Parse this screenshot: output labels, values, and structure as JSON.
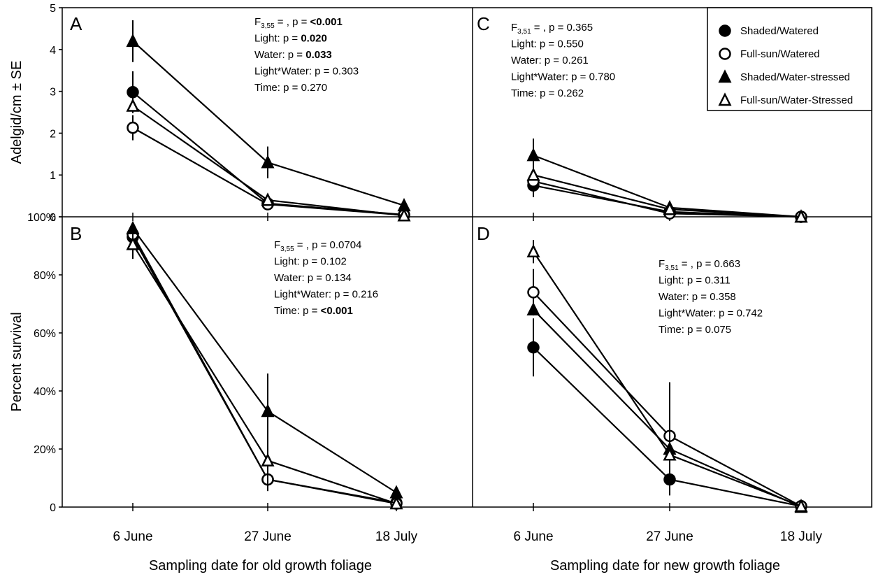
{
  "chart_data": [
    {
      "type": "line",
      "panel_label": "A",
      "x": [
        "6 June",
        "27 June",
        "18 July"
      ],
      "ylabel": "Adelgid/cm ± SE",
      "ylim": [
        0,
        5
      ],
      "yticks": [
        "0",
        "1",
        "2",
        "3",
        "4",
        "5"
      ],
      "series": [
        {
          "name": "Shaded/Watered",
          "values": [
            2.98,
            0.32,
            0.05
          ],
          "err": [
            0.5,
            0,
            0
          ]
        },
        {
          "name": "Full-sun/Watered",
          "values": [
            2.13,
            0.3,
            0.04
          ],
          "err": [
            0.3,
            0,
            0
          ]
        },
        {
          "name": "Shaded/Water-stressed",
          "values": [
            4.2,
            1.3,
            0.27
          ],
          "err": [
            0.5,
            0.38,
            0
          ]
        },
        {
          "name": "Full-sun/Water-Stressed",
          "values": [
            2.65,
            0.4,
            0.03
          ],
          "err": [
            0,
            0,
            0
          ]
        }
      ],
      "stats": [
        {
          "label": "F3,55 = , p = ",
          "value": "<0.001",
          "bold": true
        },
        {
          "label": "Light: p = ",
          "value": "0.020",
          "bold": true
        },
        {
          "label": "Water: p = ",
          "value": "0.033",
          "bold": true
        },
        {
          "label": "Light*Water: p = ",
          "value": "0.303",
          "bold": false
        },
        {
          "label": "Time: p = ",
          "value": "0.270",
          "bold": false
        }
      ]
    },
    {
      "type": "line",
      "panel_label": "C",
      "x": [
        "6 June",
        "27 June",
        "18 July"
      ],
      "ylim": [
        0,
        5
      ],
      "series": [
        {
          "name": "Shaded/Watered",
          "values": [
            0.75,
            0.12,
            0.0
          ],
          "err": [
            0.28,
            0,
            0
          ]
        },
        {
          "name": "Full-sun/Watered",
          "values": [
            0.85,
            0.08,
            0.0
          ],
          "err": [
            0,
            0,
            0
          ]
        },
        {
          "name": "Shaded/Water-stressed",
          "values": [
            1.47,
            0.22,
            0.0
          ],
          "err": [
            0.4,
            0,
            0
          ]
        },
        {
          "name": "Full-sun/Water-Stressed",
          "values": [
            1.0,
            0.18,
            0.0
          ],
          "err": [
            0,
            0,
            0
          ]
        }
      ],
      "stats": [
        {
          "label": "F3,51 = , p = ",
          "value": "0.365",
          "bold": false
        },
        {
          "label": "Light: p = ",
          "value": "0.550",
          "bold": false
        },
        {
          "label": "Water: p = ",
          "value": "0.261",
          "bold": false
        },
        {
          "label": "Light*Water: p = ",
          "value": "0.780",
          "bold": false
        },
        {
          "label": "Time: p = ",
          "value": "0.262",
          "bold": false
        }
      ]
    },
    {
      "type": "line",
      "panel_label": "B",
      "x": [
        "6 June",
        "27 June",
        "18 July"
      ],
      "xlabel": "Sampling date for old growth foliage",
      "ylabel": "Percent survival",
      "ylim": [
        0,
        100
      ],
      "yticks": [
        "0",
        "20%",
        "40%",
        "60%",
        "80%",
        "100%"
      ],
      "series": [
        {
          "name": "Shaded/Watered",
          "values": [
            93,
            9.5,
            1.5
          ],
          "err": [
            0,
            0,
            0
          ]
        },
        {
          "name": "Full-sun/Watered",
          "values": [
            94,
            9.5,
            1.2
          ],
          "err": [
            0,
            0,
            0
          ]
        },
        {
          "name": "Shaded/Water-stressed",
          "values": [
            96,
            33,
            5
          ],
          "err": [
            0,
            13,
            0
          ]
        },
        {
          "name": "Full-sun/Water-Stressed",
          "values": [
            90.5,
            16,
            1.2
          ],
          "err": [
            5,
            10.5,
            0
          ]
        }
      ],
      "stats": [
        {
          "label": "F3,55 = , p = ",
          "value": "0.0704",
          "bold": false
        },
        {
          "label": "Light: p = ",
          "value": "0.102",
          "bold": false
        },
        {
          "label": "Water: p = ",
          "value": "0.134",
          "bold": false
        },
        {
          "label": "Light*Water: p = ",
          "value": "0.216",
          "bold": false
        },
        {
          "label": "Time: p = ",
          "value": "<0.001",
          "bold": true
        }
      ]
    },
    {
      "type": "line",
      "panel_label": "D",
      "x": [
        "6 June",
        "27 June",
        "18 July"
      ],
      "xlabel": "Sampling date for new growth foliage",
      "ylim": [
        0,
        100
      ],
      "series": [
        {
          "name": "Shaded/Watered",
          "values": [
            55,
            9.5,
            0.3
          ],
          "err": [
            10,
            0,
            0
          ]
        },
        {
          "name": "Full-sun/Watered",
          "values": [
            74,
            24.5,
            0.3
          ],
          "err": [
            8,
            18.5,
            0
          ]
        },
        {
          "name": "Shaded/Water-stressed",
          "values": [
            68,
            20,
            0
          ],
          "err": [
            0,
            0,
            0
          ]
        },
        {
          "name": "Full-sun/Water-Stressed",
          "values": [
            88,
            18,
            0.3
          ],
          "err": [
            4,
            14,
            0
          ]
        }
      ],
      "stats": [
        {
          "label": "F3,51 = , p = ",
          "value": "0.663",
          "bold": false
        },
        {
          "label": "Light: p = ",
          "value": "0.311",
          "bold": false
        },
        {
          "label": "Water: p = ",
          "value": "0.358",
          "bold": false
        },
        {
          "label": "Light*Water: p = ",
          "value": "0.742",
          "bold": false
        },
        {
          "label": "Time: p = ",
          "value": "0.075",
          "bold": false
        }
      ]
    }
  ],
  "legend": {
    "entries": [
      {
        "label": "Shaded/Watered",
        "marker": "filled-circle"
      },
      {
        "label": "Full-sun/Watered",
        "marker": "open-circle"
      },
      {
        "label": "Shaded/Water-stressed",
        "marker": "filled-triangle"
      },
      {
        "label": "Full-sun/Water-Stressed",
        "marker": "open-triangle"
      }
    ]
  }
}
